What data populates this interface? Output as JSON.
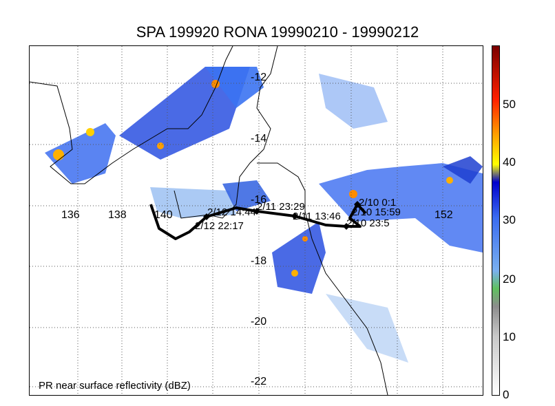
{
  "title": "SPA 199920 RONA 19990210 - 19990212",
  "footnote": "PR near surface reflectivity (dBZ)",
  "lon_ticks": [
    "136",
    "138",
    "140",
    "152"
  ],
  "lat_ticks": [
    "-12",
    "-14",
    "-16",
    "-18",
    "-20",
    "-22"
  ],
  "colorbar": {
    "labels": [
      "0",
      "10",
      "20",
      "30",
      "40",
      "50"
    ],
    "stops": [
      {
        "value": 0,
        "color": "#ffffff"
      },
      {
        "value": 10,
        "color": "#c8c8c8"
      },
      {
        "value": 15,
        "color": "#8c8c8c"
      },
      {
        "value": 18,
        "color": "#5fc05f"
      },
      {
        "value": 21,
        "color": "#7ab0f0"
      },
      {
        "value": 30,
        "color": "#3a6cf0"
      },
      {
        "value": 36,
        "color": "#0000cc"
      },
      {
        "value": 39,
        "color": "#ffff00"
      },
      {
        "value": 44,
        "color": "#ffa000"
      },
      {
        "value": 50,
        "color": "#ff2000"
      },
      {
        "value": 59,
        "color": "#7a0000"
      }
    ]
  },
  "track_labels": [
    "2/12 14:44",
    "2/12 22:17",
    "2/11 23:29",
    "2/11 13:46",
    "2/10 23:5",
    "2/10 0:1",
    "2/10 15:59"
  ],
  "colors": {
    "track": "#000000",
    "coast": "#000000",
    "grid": "#555555"
  }
}
